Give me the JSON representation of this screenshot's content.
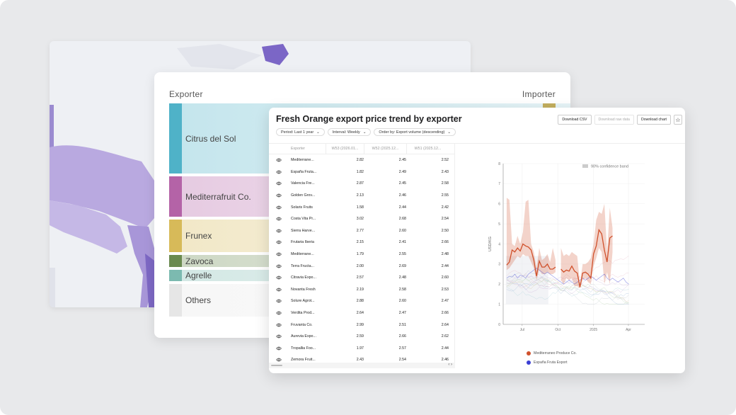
{
  "sankey": {
    "left_header": "Exporter",
    "right_header": "Importer",
    "nodes": [
      {
        "label": "Citrus del Sol",
        "color": "#4fb2c8"
      },
      {
        "label": "Mediterrafruit Co.",
        "color": "#b463a7"
      },
      {
        "label": "Frunex",
        "color": "#d7ba59"
      },
      {
        "label": "Zavoca",
        "color": "#6a8a4f"
      },
      {
        "label": "Agrelle",
        "color": "#7cbab0"
      },
      {
        "label": "Others",
        "color": "#e6e6e6"
      }
    ]
  },
  "card": {
    "title": "Fresh Orange export price trend by exporter",
    "filters": [
      {
        "label": "Period: Last 1 year"
      },
      {
        "label": "Interval: Weekly"
      },
      {
        "label": "Order by: Export volume (descending)"
      }
    ],
    "buttons": {
      "csv": "Download CSV",
      "raw": "Download raw data",
      "chart": "Download chart",
      "star": "☆"
    },
    "table": {
      "headers": [
        "Exporter",
        "W53 (2026.01...",
        "W52 (2025.12...",
        "W51 (2025.12..."
      ],
      "rows": [
        [
          "Mediterrane...",
          "2.82",
          "2.45",
          "2.52"
        ],
        [
          "España Fruta...",
          "1.82",
          "2.49",
          "2.43"
        ],
        [
          "Valencia Fre...",
          "2.87",
          "2.45",
          "2.58"
        ],
        [
          "Golden Grov...",
          "2.13",
          "2.46",
          "2.55"
        ],
        [
          "Solaris Fruits",
          "1.58",
          "2.44",
          "2.42"
        ],
        [
          "Costa Vita Pr...",
          "3.02",
          "2.68",
          "2.54"
        ],
        [
          "Sierra Harve...",
          "2.77",
          "2.60",
          "2.50"
        ],
        [
          "Frutaria Iberia",
          "2.15",
          "2.41",
          "2.66"
        ],
        [
          "Mediterrane...",
          "1.79",
          "2.55",
          "2.48"
        ],
        [
          "Terra Fructa...",
          "2.00",
          "2.69",
          "2.44"
        ],
        [
          "Citravia Expo...",
          "2.57",
          "2.48",
          "2.60"
        ],
        [
          "Novanta Fresh",
          "2.19",
          "2.58",
          "2.53"
        ],
        [
          "Solure Agrot...",
          "2.88",
          "2.60",
          "2.47"
        ],
        [
          "Verdita Prod...",
          "2.64",
          "2.47",
          "2.66"
        ],
        [
          "Fruvanta Co.",
          "2.99",
          "2.51",
          "2.64"
        ],
        [
          "Aurevia Expo...",
          "2.59",
          "2.66",
          "2.62"
        ],
        [
          "Tropallia Foo...",
          "1.97",
          "2.57",
          "2.44"
        ],
        [
          "Zemora Fruit...",
          "2.43",
          "2.54",
          "2.46"
        ]
      ],
      "scroll_arrows": "‹ ›"
    }
  },
  "chart_data": {
    "type": "line",
    "ylabel": "USD/KG",
    "ylim": [
      0,
      8
    ],
    "yticks": [
      "0",
      "1",
      "2",
      "3",
      "4",
      "5",
      "6",
      "7",
      "8"
    ],
    "xlim": [
      "2024-05-13",
      "2025-05-13"
    ],
    "xticks": [
      {
        "date": "2024-07-01",
        "label": "Jul"
      },
      {
        "date": "2024-10-01",
        "label": "Oct"
      },
      {
        "date": "2025-01-01",
        "label": "2025"
      },
      {
        "date": "2025-04-01",
        "label": "Apr"
      }
    ],
    "band_label": "90% confidence band",
    "start": "2024-05-22",
    "interval_days": 7,
    "series": [
      {
        "name": "Mediterraneo Produce Co.",
        "color": "#d0512c",
        "values": [
          2.95,
          3.1,
          3.7,
          3.6,
          3.8,
          3.65,
          4.0,
          3.9,
          3.85,
          3.7,
          3.2,
          2.4,
          3.15,
          2.85,
          2.85,
          3.0,
          2.75,
          2.75,
          2.85,
          null,
          2.75,
          2.6,
          2.7,
          2.65,
          2.9,
          2.65,
          2.55,
          1.85,
          2.55,
          2.6,
          2.5,
          2.3,
          3.5,
          3.9,
          4.7,
          4.5,
          3.7,
          3.1,
          4.3,
          4.4
        ],
        "band": [
          [
            2.7,
            6.3
          ],
          [
            2.8,
            6.2
          ],
          [
            3.0,
            4.0
          ],
          [
            3.2,
            3.9
          ],
          [
            3.4,
            4.4
          ],
          [
            3.3,
            4.0
          ],
          [
            3.5,
            4.6
          ],
          [
            3.4,
            6.1
          ],
          [
            3.4,
            6.2
          ],
          [
            3.1,
            4.0
          ],
          [
            2.8,
            3.6
          ],
          [
            2.2,
            2.8
          ],
          [
            2.7,
            3.8
          ],
          [
            2.5,
            3.2
          ],
          [
            2.5,
            3.3
          ],
          [
            2.6,
            3.5
          ],
          [
            2.5,
            3.1
          ],
          [
            2.5,
            3.8
          ],
          [
            2.6,
            3.2
          ],
          [
            null,
            null
          ],
          [
            2.2,
            3.8
          ],
          [
            2.0,
            3.4
          ],
          [
            2.3,
            3.5
          ],
          [
            2.2,
            3.4
          ],
          [
            2.3,
            3.6
          ],
          [
            1.9,
            3.5
          ],
          [
            1.9,
            3.4
          ],
          [
            1.8,
            2.0
          ],
          [
            2.2,
            3.0
          ],
          [
            2.3,
            3.0
          ],
          [
            2.1,
            3.1
          ],
          [
            2.0,
            3.3
          ],
          [
            2.9,
            4.0
          ],
          [
            3.3,
            5.2
          ],
          [
            3.8,
            5.6
          ],
          [
            3.6,
            5.5
          ],
          [
            2.0,
            6.0
          ],
          [
            2.6,
            3.6
          ],
          [
            2.0,
            5.8
          ],
          [
            3.6,
            4.8
          ]
        ]
      },
      {
        "name": "España Fruta Export",
        "color": "#3b3fd4",
        "values": [
          2.3,
          2.4,
          2.35,
          2.5,
          2.3,
          2.45,
          2.4,
          2.3,
          2.5,
          2.6,
          2.7,
          2.8,
          2.7,
          2.6,
          2.5,
          2.6,
          2.5,
          2.4,
          2.3,
          2.2,
          2.1,
          2.0,
          2.1,
          2.2,
          2.1,
          2.0,
          2.1,
          2.2,
          2.3,
          2.2,
          2.3,
          2.4,
          2.3,
          2.2,
          2.3,
          2.4,
          2.5,
          2.3,
          2.2,
          2.3,
          2.2,
          2.1,
          2.2,
          2.3,
          2.1,
          2.0
        ]
      }
    ]
  }
}
